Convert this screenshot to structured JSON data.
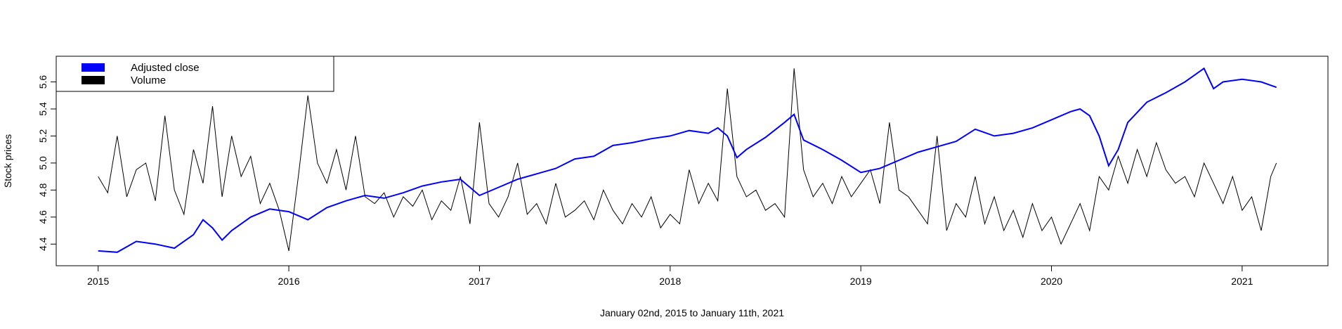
{
  "chart_data": {
    "type": "line",
    "title": "",
    "xlabel": "January 02nd, 2015 to January 11th, 2021",
    "ylabel": "Stock prices",
    "xlim": [
      2014.78,
      2021.45
    ],
    "ylim": [
      4.24,
      5.79
    ],
    "x_ticks": [
      2015,
      2016,
      2017,
      2018,
      2019,
      2020,
      2021
    ],
    "x_tick_labels": [
      "2015",
      "2016",
      "2017",
      "2018",
      "2019",
      "2020",
      "2021"
    ],
    "y_ticks": [
      4.4,
      4.6,
      4.8,
      5.0,
      5.2,
      5.4,
      5.6
    ],
    "y_tick_labels": [
      "4.4",
      "4.6",
      "4.8",
      "5.0",
      "5.2",
      "5.4",
      "5.6"
    ],
    "legend": {
      "position": "top-left",
      "entries": [
        {
          "label": "Adjusted close",
          "color": "#0000ff"
        },
        {
          "label": "Volume",
          "color": "#000000"
        }
      ]
    },
    "series": [
      {
        "name": "Adjusted close",
        "color": "#0000ff",
        "x": [
          2015.0,
          2015.1,
          2015.2,
          2015.3,
          2015.4,
          2015.5,
          2015.55,
          2015.6,
          2015.65,
          2015.7,
          2015.8,
          2015.9,
          2016.0,
          2016.1,
          2016.2,
          2016.3,
          2016.4,
          2016.5,
          2016.6,
          2016.7,
          2016.8,
          2016.9,
          2017.0,
          2017.1,
          2017.2,
          2017.3,
          2017.4,
          2017.5,
          2017.6,
          2017.7,
          2017.8,
          2017.9,
          2018.0,
          2018.1,
          2018.2,
          2018.25,
          2018.3,
          2018.35,
          2018.4,
          2018.5,
          2018.6,
          2018.65,
          2018.7,
          2018.8,
          2018.9,
          2019.0,
          2019.1,
          2019.2,
          2019.3,
          2019.4,
          2019.5,
          2019.6,
          2019.7,
          2019.8,
          2019.9,
          2020.0,
          2020.1,
          2020.15,
          2020.2,
          2020.25,
          2020.3,
          2020.35,
          2020.4,
          2020.5,
          2020.6,
          2020.7,
          2020.75,
          2020.8,
          2020.85,
          2020.9,
          2021.0,
          2021.1,
          2021.18
        ],
        "y": [
          4.35,
          4.34,
          4.42,
          4.4,
          4.37,
          4.47,
          4.58,
          4.52,
          4.43,
          4.5,
          4.6,
          4.66,
          4.64,
          4.58,
          4.67,
          4.72,
          4.76,
          4.74,
          4.78,
          4.83,
          4.86,
          4.88,
          4.76,
          4.82,
          4.88,
          4.92,
          4.96,
          5.03,
          5.05,
          5.13,
          5.15,
          5.18,
          5.2,
          5.24,
          5.22,
          5.26,
          5.2,
          5.04,
          5.1,
          5.19,
          5.3,
          5.36,
          5.17,
          5.1,
          5.02,
          4.93,
          4.96,
          5.02,
          5.08,
          5.12,
          5.16,
          5.25,
          5.2,
          5.22,
          5.26,
          5.32,
          5.38,
          5.4,
          5.35,
          5.2,
          4.98,
          5.1,
          5.3,
          5.45,
          5.52,
          5.6,
          5.65,
          5.7,
          5.55,
          5.6,
          5.62,
          5.6,
          5.56
        ]
      },
      {
        "name": "Volume",
        "color": "#000000",
        "x": [
          2015.0,
          2015.05,
          2015.1,
          2015.15,
          2015.2,
          2015.25,
          2015.3,
          2015.35,
          2015.4,
          2015.45,
          2015.5,
          2015.55,
          2015.6,
          2015.65,
          2015.7,
          2015.75,
          2015.8,
          2015.85,
          2015.9,
          2015.95,
          2016.0,
          2016.05,
          2016.1,
          2016.15,
          2016.2,
          2016.25,
          2016.3,
          2016.35,
          2016.4,
          2016.45,
          2016.5,
          2016.55,
          2016.6,
          2016.65,
          2016.7,
          2016.75,
          2016.8,
          2016.85,
          2016.9,
          2016.95,
          2017.0,
          2017.05,
          2017.1,
          2017.15,
          2017.2,
          2017.25,
          2017.3,
          2017.35,
          2017.4,
          2017.45,
          2017.5,
          2017.55,
          2017.6,
          2017.65,
          2017.7,
          2017.75,
          2017.8,
          2017.85,
          2017.9,
          2017.95,
          2018.0,
          2018.05,
          2018.1,
          2018.15,
          2018.2,
          2018.25,
          2018.3,
          2018.35,
          2018.4,
          2018.45,
          2018.5,
          2018.55,
          2018.6,
          2018.65,
          2018.7,
          2018.75,
          2018.8,
          2018.85,
          2018.9,
          2018.95,
          2019.0,
          2019.05,
          2019.1,
          2019.15,
          2019.2,
          2019.25,
          2019.3,
          2019.35,
          2019.4,
          2019.45,
          2019.5,
          2019.55,
          2019.6,
          2019.65,
          2019.7,
          2019.75,
          2019.8,
          2019.85,
          2019.9,
          2019.95,
          2020.0,
          2020.05,
          2020.1,
          2020.15,
          2020.2,
          2020.25,
          2020.3,
          2020.35,
          2020.4,
          2020.45,
          2020.5,
          2020.55,
          2020.6,
          2020.65,
          2020.7,
          2020.75,
          2020.8,
          2020.85,
          2020.9,
          2020.95,
          2021.0,
          2021.05,
          2021.1,
          2021.15,
          2021.18
        ],
        "y": [
          4.9,
          4.78,
          5.2,
          4.75,
          4.95,
          5.0,
          4.72,
          5.35,
          4.8,
          4.62,
          5.1,
          4.85,
          5.42,
          4.75,
          5.2,
          4.9,
          5.05,
          4.7,
          4.85,
          4.65,
          4.35,
          4.9,
          5.5,
          5.0,
          4.85,
          5.1,
          4.8,
          5.2,
          4.75,
          4.7,
          4.78,
          4.6,
          4.75,
          4.68,
          4.8,
          4.58,
          4.72,
          4.65,
          4.9,
          4.55,
          5.3,
          4.7,
          4.6,
          4.75,
          5.0,
          4.62,
          4.7,
          4.55,
          4.85,
          4.6,
          4.65,
          4.72,
          4.58,
          4.8,
          4.65,
          4.55,
          4.7,
          4.6,
          4.75,
          4.52,
          4.62,
          4.55,
          4.95,
          4.7,
          4.85,
          4.72,
          5.55,
          4.9,
          4.75,
          4.8,
          4.65,
          4.7,
          4.6,
          5.7,
          4.95,
          4.75,
          4.85,
          4.7,
          4.9,
          4.75,
          4.85,
          4.95,
          4.7,
          5.3,
          4.8,
          4.75,
          4.65,
          4.55,
          5.2,
          4.5,
          4.7,
          4.6,
          4.9,
          4.55,
          4.75,
          4.5,
          4.65,
          4.45,
          4.7,
          4.5,
          4.6,
          4.4,
          4.55,
          4.7,
          4.5,
          4.9,
          4.8,
          5.05,
          4.85,
          5.1,
          4.9,
          5.15,
          4.95,
          4.85,
          4.9,
          4.75,
          5.0,
          4.85,
          4.7,
          4.9,
          4.65,
          4.75,
          4.5,
          4.9,
          5.0
        ]
      }
    ]
  }
}
